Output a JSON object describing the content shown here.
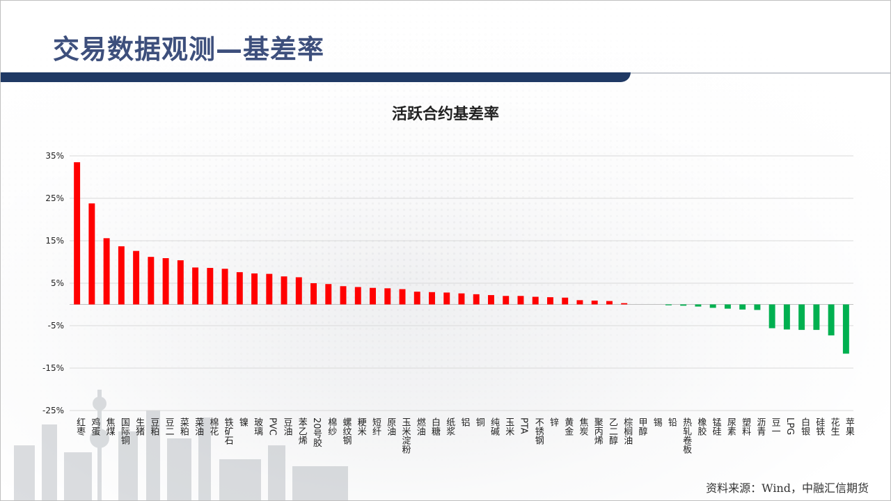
{
  "page": {
    "title": "交易数据观测—基差率",
    "source": "资料来源：Wind，中融汇信期货"
  },
  "colors": {
    "positive": "#ff0000",
    "negative": "#00b050",
    "title": "#3d4f7c",
    "title_bar": "#1f3964"
  },
  "chart_data": {
    "type": "bar",
    "title": "活跃合约基差率",
    "xlabel": "",
    "ylabel": "",
    "ylim": [
      -25,
      35
    ],
    "yticks": [
      35,
      25,
      15,
      5,
      -5,
      -15,
      -25
    ],
    "ytick_labels": [
      "35%",
      "25%",
      "15%",
      "5%",
      "-5%",
      "-15%",
      "-25%"
    ],
    "grid": true,
    "legend": "none",
    "categories": [
      "红枣",
      "鸡蛋",
      "焦煤",
      "国际铜",
      "生猪",
      "豆粕",
      "豆二",
      "菜粕",
      "菜油",
      "棉花",
      "铁矿石",
      "镍",
      "玻璃",
      "PVC",
      "豆油",
      "苯乙烯",
      "20号胶",
      "棉纱",
      "螺纹钢",
      "粳米",
      "短纤",
      "原油",
      "玉米淀粉",
      "燃油",
      "白糖",
      "纸浆",
      "铝",
      "铜",
      "纯碱",
      "玉米",
      "PTA",
      "不锈钢",
      "锌",
      "黄金",
      "焦炭",
      "聚丙烯",
      "乙二醇",
      "棕榈油",
      "甲醇",
      "锡",
      "铅",
      "热轧卷板",
      "橡胶",
      "锰硅",
      "尿素",
      "塑料",
      "沥青",
      "豆一",
      "LPG",
      "白银",
      "硅铁",
      "花生",
      "苹果"
    ],
    "values": [
      33.5,
      23.8,
      15.6,
      13.7,
      12.6,
      11.2,
      10.9,
      10.4,
      8.7,
      8.6,
      8.4,
      7.6,
      7.3,
      7.2,
      6.6,
      6.4,
      5.0,
      4.8,
      4.3,
      4.1,
      3.9,
      3.8,
      3.6,
      3.0,
      2.9,
      2.8,
      2.6,
      2.4,
      2.2,
      2.0,
      2.0,
      1.8,
      1.7,
      1.6,
      1.0,
      0.9,
      0.8,
      0.3,
      0.0,
      0.0,
      -0.2,
      -0.3,
      -0.5,
      -0.8,
      -1.0,
      -1.2,
      -1.3,
      -5.6,
      -5.9,
      -6.0,
      -6.0,
      -7.3,
      -11.6
    ]
  }
}
